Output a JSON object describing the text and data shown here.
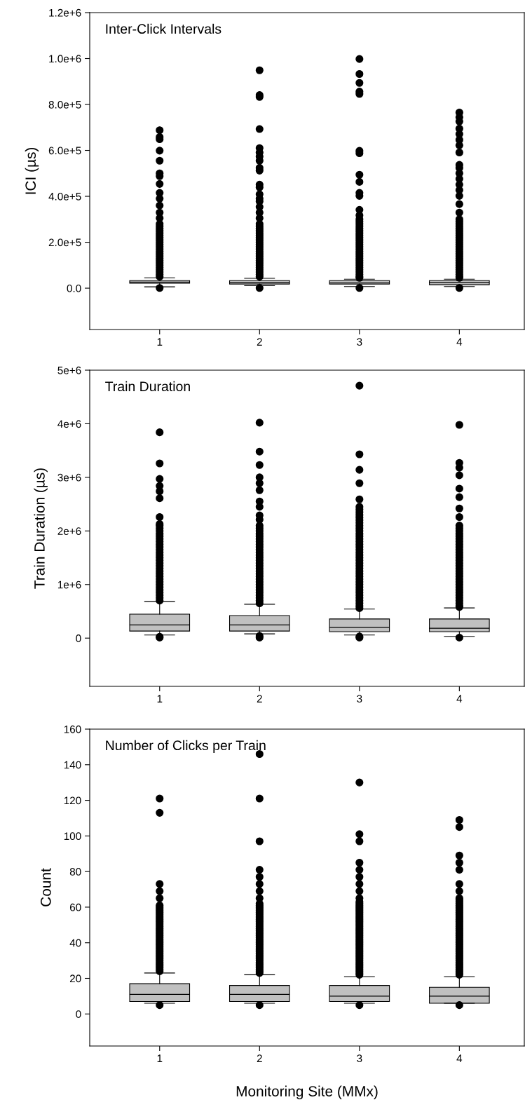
{
  "chart_data": [
    {
      "type": "box",
      "title": "Inter-Click Intervals",
      "ylabel": "ICI (µs)",
      "categories": [
        "1",
        "2",
        "3",
        "4"
      ],
      "ylim": [
        -180000,
        1200000
      ],
      "yticks": [
        {
          "value": 0,
          "label": "0.0"
        },
        {
          "value": 200000,
          "label": "2.0e+5"
        },
        {
          "value": 400000,
          "label": "4.0e+5"
        },
        {
          "value": 600000,
          "label": "6.0e+5"
        },
        {
          "value": 800000,
          "label": "8.0e+5"
        },
        {
          "value": 1000000,
          "label": "1.0e+6"
        },
        {
          "value": 1200000,
          "label": "1.2e+6"
        }
      ],
      "series": [
        {
          "color": "#c0c0c0",
          "boxes": [
            {
              "low": 6000,
              "q1": 22000,
              "median": 27000,
              "q3": 33000,
              "high": 45000,
              "outliers": [
                1000,
                50000,
                60000,
                70000,
                80000,
                90000,
                100000,
                110000,
                120000,
                130000,
                140000,
                150000,
                160000,
                170000,
                180000,
                190000,
                200000,
                210000,
                220000,
                230000,
                240000,
                250000,
                260000,
                270000,
                280000,
                305000,
                329000,
                360000,
                390000,
                415000,
                454000,
                488000,
                500000,
                555000,
                599000,
                649000,
                658000,
                688000
              ]
            },
            {
              "low": 11000,
              "q1": 18000,
              "median": 25000,
              "q3": 33000,
              "high": 43000,
              "outliers": [
                1000,
                50000,
                60000,
                70000,
                80000,
                90000,
                100000,
                110000,
                120000,
                130000,
                140000,
                150000,
                160000,
                170000,
                180000,
                190000,
                200000,
                210000,
                220000,
                230000,
                240000,
                250000,
                260000,
                270000,
                280000,
                305000,
                329000,
                354000,
                378000,
                390000,
                409000,
                439000,
                451000,
                512000,
                524000,
                555000,
                573000,
                591000,
                610000,
                693000,
                833000,
                841000,
                949000
              ]
            },
            {
              "low": 7000,
              "q1": 18000,
              "median": 24000,
              "q3": 33000,
              "high": 39000,
              "outliers": [
                1000,
                45000,
                50000,
                60000,
                70000,
                80000,
                90000,
                100000,
                110000,
                120000,
                130000,
                140000,
                150000,
                160000,
                170000,
                180000,
                190000,
                200000,
                210000,
                220000,
                230000,
                240000,
                250000,
                260000,
                270000,
                280000,
                290000,
                300000,
                317000,
                341000,
                402000,
                415000,
                463000,
                494000,
                588000,
                598000,
                846000,
                856000,
                894000,
                933000,
                998000
              ]
            },
            {
              "low": 7000,
              "q1": 15000,
              "median": 25000,
              "q3": 33000,
              "high": 39000,
              "outliers": [
                1000,
                45000,
                50000,
                60000,
                70000,
                80000,
                90000,
                100000,
                110000,
                120000,
                130000,
                140000,
                150000,
                160000,
                170000,
                180000,
                190000,
                200000,
                210000,
                220000,
                230000,
                240000,
                250000,
                260000,
                270000,
                280000,
                290000,
                300000,
                329000,
                366000,
                402000,
                427000,
                451000,
                476000,
                500000,
                524000,
                537000,
                591000,
                622000,
                646000,
                671000,
                695000,
                726000,
                744000,
                765000
              ]
            }
          ]
        }
      ]
    },
    {
      "type": "box",
      "title": "Train Duration",
      "ylabel": "Train Duration (µs)",
      "categories": [
        "1",
        "2",
        "3",
        "4"
      ],
      "ylim": [
        -900000,
        5000000
      ],
      "yticks": [
        0,
        {
          "value": 1000000,
          "label": "1e+6"
        },
        {
          "value": 2000000,
          "label": "2e+6"
        },
        {
          "value": 3000000,
          "label": "3e+6"
        },
        {
          "value": 4000000,
          "label": "4e+6"
        },
        {
          "value": 5000000,
          "label": "5e+6"
        }
      ],
      "series": [
        {
          "color": "#c0c0c0",
          "boxes": [
            {
              "low": 58000,
              "q1": 132000,
              "median": 247000,
              "q3": 447000,
              "high": 684000,
              "outliers": [
                10000,
                26000,
                700000,
                750000,
                800000,
                850000,
                900000,
                950000,
                1000000,
                1050000,
                1100000,
                1150000,
                1200000,
                1250000,
                1300000,
                1350000,
                1400000,
                1450000,
                1500000,
                1550000,
                1600000,
                1650000,
                1700000,
                1750000,
                1800000,
                1850000,
                1900000,
                1950000,
                2000000,
                2050000,
                2100000,
                2130000,
                2260000,
                2610000,
                2740000,
                2840000,
                2970000,
                3260000,
                3840000
              ]
            },
            {
              "low": 79000,
              "q1": 132000,
              "median": 247000,
              "q3": 421000,
              "high": 632000,
              "outliers": [
                10000,
                40000,
                650000,
                700000,
                750000,
                800000,
                850000,
                900000,
                950000,
                1000000,
                1050000,
                1100000,
                1150000,
                1200000,
                1250000,
                1300000,
                1350000,
                1400000,
                1450000,
                1500000,
                1550000,
                1600000,
                1650000,
                1700000,
                1750000,
                1800000,
                1850000,
                1900000,
                1950000,
                2000000,
                2050000,
                2100000,
                2210000,
                2290000,
                2450000,
                2550000,
                2760000,
                2890000,
                3000000,
                3230000,
                3480000,
                4020000
              ]
            },
            {
              "low": 58000,
              "q1": 121000,
              "median": 200000,
              "q3": 358000,
              "high": 542000,
              "outliers": [
                10000,
                30000,
                560000,
                600000,
                650000,
                700000,
                750000,
                800000,
                850000,
                900000,
                950000,
                1000000,
                1050000,
                1100000,
                1150000,
                1200000,
                1250000,
                1300000,
                1350000,
                1400000,
                1450000,
                1500000,
                1550000,
                1600000,
                1650000,
                1700000,
                1750000,
                1800000,
                1850000,
                1900000,
                1950000,
                2000000,
                2050000,
                2100000,
                2150000,
                2200000,
                2250000,
                2300000,
                2350000,
                2400000,
                2450000,
                2590000,
                2890000,
                3140000,
                3430000,
                4710000
              ]
            },
            {
              "low": 32000,
              "q1": 121000,
              "median": 184000,
              "q3": 358000,
              "high": 563000,
              "outliers": [
                10000,
                580000,
                600000,
                650000,
                700000,
                750000,
                800000,
                850000,
                900000,
                950000,
                1000000,
                1050000,
                1100000,
                1150000,
                1200000,
                1250000,
                1300000,
                1350000,
                1400000,
                1450000,
                1500000,
                1550000,
                1600000,
                1650000,
                1700000,
                1750000,
                1800000,
                1850000,
                1900000,
                1950000,
                2000000,
                2050000,
                2100000,
                2260000,
                2420000,
                2630000,
                2790000,
                3040000,
                3180000,
                3270000,
                3980000
              ]
            }
          ]
        }
      ]
    },
    {
      "type": "box",
      "title": "Number of Clicks per Train",
      "xlabel": "Monitoring Site (MMx)",
      "ylabel": "Count",
      "categories": [
        "1",
        "2",
        "3",
        "4"
      ],
      "ylim": [
        -18,
        160
      ],
      "yticks": [
        0,
        20,
        40,
        60,
        80,
        100,
        120,
        140,
        160
      ],
      "series": [
        {
          "color": "#c0c0c0",
          "boxes": [
            {
              "low": 6,
              "q1": 7,
              "median": 11,
              "q3": 17,
              "high": 23,
              "outliers": [
                5,
                24,
                25,
                26,
                27,
                28,
                29,
                30,
                31,
                32,
                33,
                34,
                35,
                36,
                37,
                38,
                39,
                40,
                41,
                42,
                43,
                44,
                45,
                46,
                47,
                48,
                49,
                50,
                51,
                52,
                53,
                54,
                55,
                56,
                57,
                58,
                59,
                60,
                61,
                65,
                69,
                73,
                113,
                121
              ]
            },
            {
              "low": 6,
              "q1": 7,
              "median": 11,
              "q3": 16,
              "high": 22,
              "outliers": [
                5,
                23,
                24,
                25,
                26,
                27,
                28,
                29,
                30,
                31,
                32,
                33,
                34,
                35,
                36,
                37,
                38,
                39,
                40,
                41,
                42,
                43,
                44,
                45,
                46,
                47,
                48,
                49,
                50,
                51,
                52,
                53,
                54,
                55,
                56,
                57,
                58,
                59,
                60,
                61,
                62,
                65,
                69,
                73,
                77,
                81,
                97,
                121,
                146
              ]
            },
            {
              "low": 6,
              "q1": 7,
              "median": 10,
              "q3": 16,
              "high": 21,
              "outliers": [
                5,
                22,
                23,
                24,
                25,
                26,
                27,
                28,
                29,
                30,
                31,
                32,
                33,
                34,
                35,
                36,
                37,
                38,
                39,
                40,
                41,
                42,
                43,
                44,
                45,
                46,
                47,
                48,
                49,
                50,
                51,
                52,
                53,
                54,
                55,
                56,
                57,
                58,
                59,
                60,
                61,
                62,
                63,
                65,
                69,
                73,
                77,
                81,
                85,
                97,
                101,
                130
              ]
            },
            {
              "low": 6,
              "q1": 6,
              "median": 10,
              "q3": 15,
              "high": 21,
              "outliers": [
                5,
                22,
                23,
                24,
                25,
                26,
                27,
                28,
                29,
                30,
                31,
                32,
                33,
                34,
                35,
                36,
                37,
                38,
                39,
                40,
                41,
                42,
                43,
                44,
                45,
                46,
                47,
                48,
                49,
                50,
                51,
                52,
                53,
                54,
                55,
                56,
                57,
                58,
                59,
                60,
                61,
                62,
                63,
                64,
                65,
                69,
                73,
                81,
                85,
                89,
                105,
                109
              ]
            }
          ]
        }
      ]
    }
  ]
}
